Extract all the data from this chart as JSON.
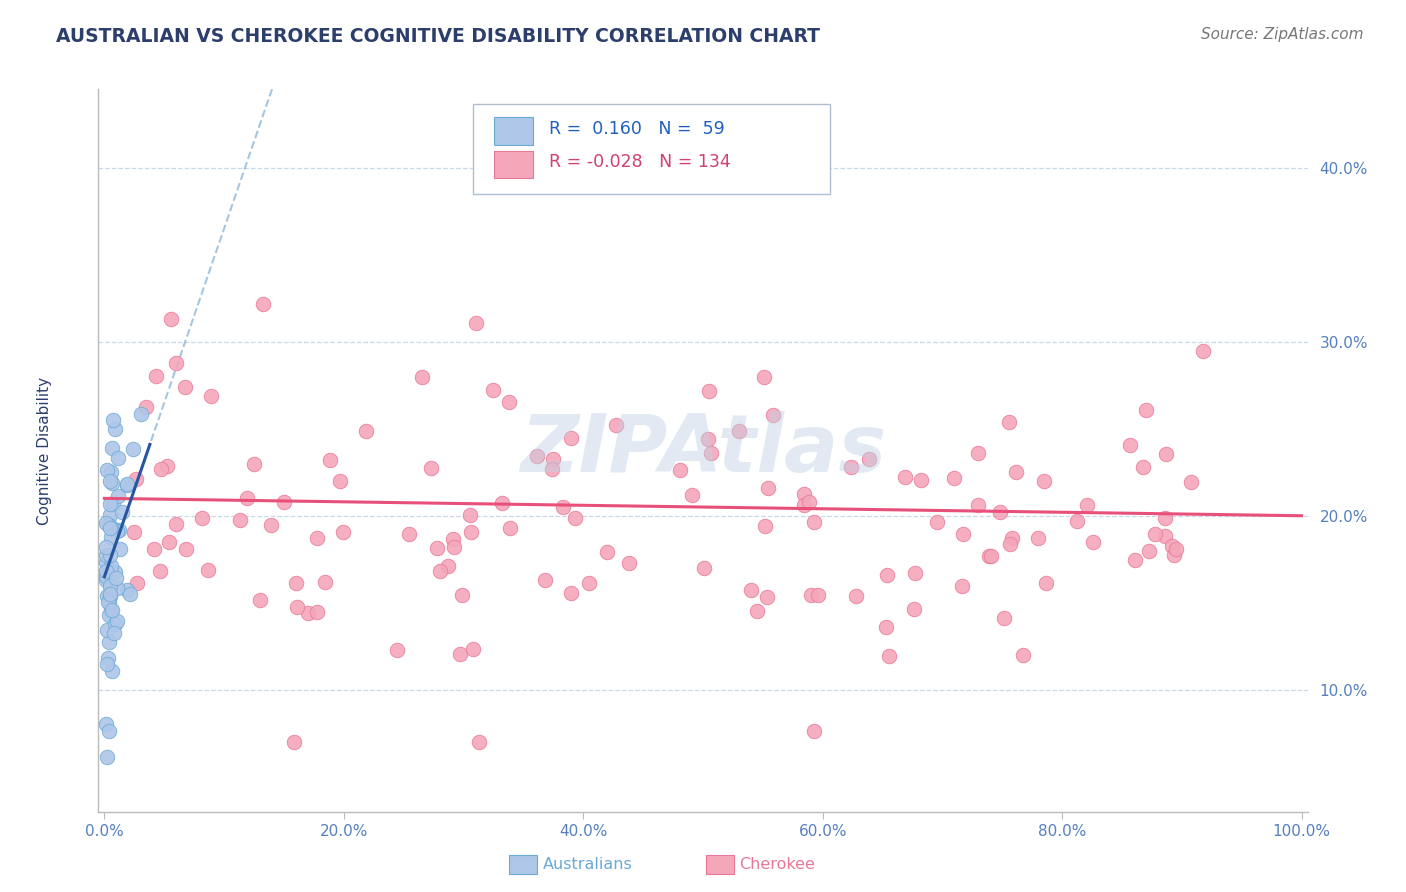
{
  "title": "AUSTRALIAN VS CHEROKEE COGNITIVE DISABILITY CORRELATION CHART",
  "source": "Source: ZipAtlas.com",
  "ylabel": "Cognitive Disability",
  "xlim": [
    -0.005,
    1.005
  ],
  "ylim": [
    0.03,
    0.445
  ],
  "xtick_vals": [
    0.0,
    0.2,
    0.4,
    0.6,
    0.8,
    1.0
  ],
  "xtick_labels": [
    "0.0%",
    "20.0%",
    "40.0%",
    "60.0%",
    "80.0%",
    "100.0%"
  ],
  "ytick_vals": [
    0.1,
    0.2,
    0.3,
    0.4
  ],
  "ytick_labels": [
    "10.0%",
    "20.0%",
    "30.0%",
    "40.0%"
  ],
  "aus_color": "#aec6e8",
  "aus_edge": "#6aaad4",
  "cherokee_color": "#f4a7b9",
  "cherokee_edge": "#e87898",
  "aus_R": 0.16,
  "aus_N": 59,
  "cherokee_R": -0.028,
  "cherokee_N": 134,
  "trend_aus_solid_color": "#2855a0",
  "trend_aus_dash_color": "#90b8d8",
  "trend_cherokee_color": "#e8507a",
  "watermark": "ZIPAtlas",
  "background_color": "#ffffff",
  "title_color": "#2c3e6b",
  "source_color": "#777777",
  "ylabel_color": "#2c3e6b",
  "tick_color": "#5580c0",
  "grid_color": "#c8d8e8",
  "legend_color": "#2060c0",
  "legend_cherokee_color": "#d04070"
}
